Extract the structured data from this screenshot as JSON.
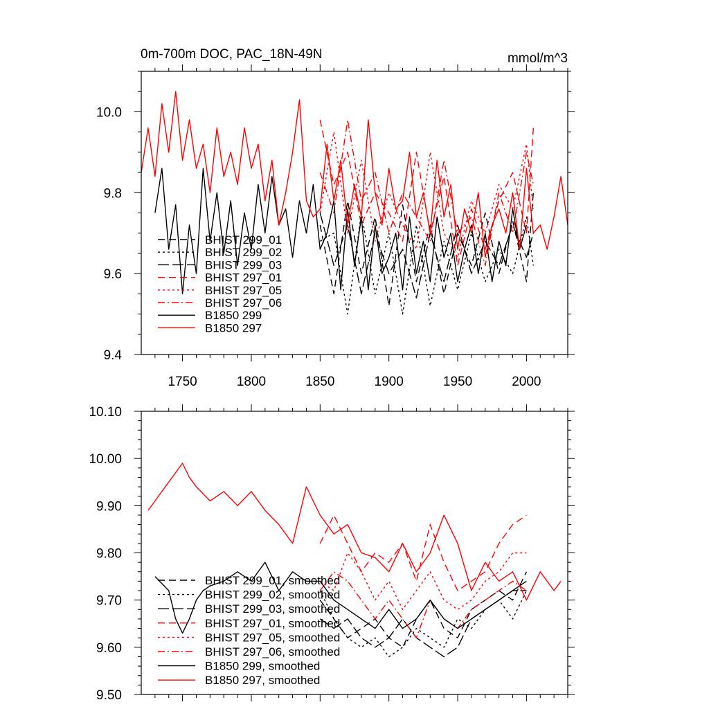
{
  "chart_data": [
    {
      "type": "line",
      "title": "0m-700m DOC, PAC_18N-49N",
      "units": "mmol/m^3",
      "xlim": [
        1720,
        2030
      ],
      "ylim": [
        9.4,
        10.1
      ],
      "xticks": [
        1750,
        1800,
        1850,
        1900,
        1950,
        2000
      ],
      "xtick_labels": [
        "1750",
        "1800",
        "1850",
        "1900",
        "1950",
        "2000"
      ],
      "yticks": [
        9.4,
        9.6,
        9.8,
        10.0
      ],
      "ytick_labels": [
        "9.4",
        "9.6",
        "9.8",
        "10.0"
      ],
      "legend": [
        "BHIST 299_01",
        "BHIST 299_02",
        "BHIST 299_03",
        "BHIST 297_01",
        "BHIST 297_05",
        "BHIST 297_06",
        "B1850 299",
        "B1850 297"
      ],
      "series": [
        {
          "name": "BHIST 299_01",
          "color": "#000000",
          "dash": "long",
          "x": [
            1850,
            1860,
            1870,
            1880,
            1890,
            1900,
            1910,
            1920,
            1930,
            1940,
            1950,
            1960,
            1970,
            1980,
            1990,
            2000,
            2005
          ],
          "y": [
            9.72,
            9.55,
            9.78,
            9.6,
            9.74,
            9.52,
            9.77,
            9.58,
            9.72,
            9.55,
            9.7,
            9.62,
            9.75,
            9.6,
            9.73,
            9.58,
            9.8
          ]
        },
        {
          "name": "BHIST 299_02",
          "color": "#000000",
          "dash": "short",
          "x": [
            1850,
            1860,
            1870,
            1880,
            1890,
            1900,
            1910,
            1920,
            1930,
            1940,
            1950,
            1960,
            1970,
            1980,
            1990,
            2000,
            2005
          ],
          "y": [
            9.68,
            9.7,
            9.5,
            9.75,
            9.55,
            9.7,
            9.5,
            9.72,
            9.52,
            9.68,
            9.56,
            9.7,
            9.58,
            9.66,
            9.6,
            9.74,
            9.62
          ]
        },
        {
          "name": "BHIST 299_03",
          "color": "#000000",
          "dash": "longlong",
          "x": [
            1850,
            1860,
            1870,
            1880,
            1890,
            1900,
            1910,
            1920,
            1930,
            1940,
            1950,
            1960,
            1970,
            1980,
            1990,
            2000,
            2005
          ],
          "y": [
            9.75,
            9.62,
            9.72,
            9.55,
            9.7,
            9.6,
            9.66,
            9.54,
            9.7,
            9.58,
            9.72,
            9.6,
            9.68,
            9.62,
            9.72,
            9.64,
            9.7
          ]
        },
        {
          "name": "BHIST 297_01",
          "color": "#ff0000",
          "dash": "long",
          "x": [
            1850,
            1860,
            1870,
            1880,
            1890,
            1900,
            1910,
            1920,
            1930,
            1940,
            1950,
            1960,
            1970,
            1980,
            1990,
            2000,
            2005
          ],
          "y": [
            9.98,
            9.82,
            9.9,
            9.72,
            9.8,
            9.75,
            9.68,
            9.9,
            9.7,
            9.84,
            9.62,
            9.76,
            9.66,
            9.78,
            9.85,
            9.7,
            9.96
          ]
        },
        {
          "name": "BHIST 297_05",
          "color": "#ff0000",
          "dash": "short",
          "x": [
            1850,
            1860,
            1870,
            1880,
            1890,
            1900,
            1910,
            1920,
            1930,
            1940,
            1950,
            1960,
            1970,
            1980,
            1990,
            2000,
            2005
          ],
          "y": [
            9.75,
            9.95,
            9.7,
            9.88,
            9.68,
            9.8,
            9.72,
            9.66,
            9.9,
            9.7,
            9.64,
            9.78,
            9.7,
            9.82,
            9.76,
            9.92,
            9.76
          ]
        },
        {
          "name": "BHIST 297_06",
          "color": "#ff0000",
          "dash": "dashdot",
          "x": [
            1850,
            1860,
            1870,
            1880,
            1890,
            1900,
            1910,
            1920,
            1930,
            1940,
            1950,
            1960,
            1970,
            1980,
            1990,
            2000,
            2005
          ],
          "y": [
            9.85,
            9.75,
            9.98,
            9.78,
            9.85,
            9.7,
            9.8,
            9.74,
            9.68,
            9.88,
            9.7,
            9.74,
            9.62,
            9.8,
            9.7,
            9.9,
            9.82
          ]
        },
        {
          "name": "B1850 299",
          "color": "#000000",
          "dash": "solid",
          "x": [
            1730,
            1735,
            1740,
            1745,
            1750,
            1755,
            1760,
            1765,
            1770,
            1775,
            1780,
            1785,
            1790,
            1795,
            1800,
            1805,
            1810,
            1815,
            1820,
            1825,
            1830,
            1835,
            1840,
            1845,
            1850,
            1855,
            1860,
            1865,
            1870,
            1875,
            1880,
            1885,
            1890,
            1895,
            1900,
            1905,
            1910,
            1915,
            1920,
            1925,
            1930,
            1935,
            1940,
            1945,
            1950,
            1955,
            1960,
            1965,
            1970,
            1975,
            1980,
            1985,
            1990,
            1995,
            2000
          ],
          "y": [
            9.75,
            9.86,
            9.66,
            9.77,
            9.55,
            9.72,
            9.6,
            9.86,
            9.68,
            9.8,
            9.65,
            9.78,
            9.62,
            9.75,
            9.66,
            9.82,
            9.7,
            9.84,
            9.72,
            9.76,
            9.64,
            9.78,
            9.7,
            9.82,
            9.66,
            9.7,
            9.78,
            9.56,
            9.76,
            9.62,
            9.74,
            9.56,
            9.72,
            9.6,
            9.64,
            9.7,
            9.56,
            9.74,
            9.6,
            9.68,
            9.58,
            9.74,
            9.64,
            9.7,
            9.58,
            9.66,
            9.72,
            9.6,
            9.7,
            9.58,
            9.68,
            9.62,
            9.76,
            9.66,
            9.72
          ]
        },
        {
          "name": "B1850 297",
          "color": "#ff0000",
          "dash": "solid",
          "x": [
            1720,
            1725,
            1730,
            1735,
            1740,
            1745,
            1750,
            1755,
            1760,
            1765,
            1770,
            1775,
            1780,
            1785,
            1790,
            1795,
            1800,
            1805,
            1810,
            1815,
            1820,
            1825,
            1830,
            1835,
            1840,
            1845,
            1850,
            1855,
            1860,
            1865,
            1870,
            1875,
            1880,
            1885,
            1890,
            1895,
            1900,
            1905,
            1910,
            1915,
            1920,
            1925,
            1930,
            1935,
            1940,
            1945,
            1950,
            1955,
            1960,
            1965,
            1970,
            1975,
            1980,
            1985,
            1990,
            1995,
            2000,
            2005,
            2010,
            2015,
            2020,
            2025,
            2030
          ],
          "y": [
            9.85,
            9.96,
            9.84,
            10.02,
            9.9,
            10.05,
            9.88,
            9.98,
            9.86,
            9.92,
            9.8,
            9.96,
            9.84,
            9.9,
            9.82,
            9.96,
            9.86,
            9.92,
            9.78,
            9.88,
            9.72,
            9.8,
            9.9,
            10.03,
            9.78,
            9.74,
            9.76,
            9.92,
            9.78,
            9.88,
            9.72,
            9.82,
            9.74,
            9.98,
            9.8,
            9.72,
            9.86,
            9.76,
            9.78,
            9.9,
            9.74,
            9.8,
            9.7,
            9.88,
            9.74,
            9.82,
            9.66,
            9.76,
            9.7,
            9.8,
            9.64,
            9.72,
            9.76,
            9.7,
            9.8,
            9.66,
            9.86,
            9.7,
            9.72,
            9.66,
            9.74,
            9.84,
            9.72
          ]
        }
      ]
    },
    {
      "type": "line",
      "title": "",
      "xlim": [
        1720,
        2030
      ],
      "ylim": [
        9.5,
        10.1
      ],
      "xticks": [
        1750,
        1800,
        1850,
        1900,
        1950,
        2000
      ],
      "yticks": [
        9.5,
        9.6,
        9.7,
        9.8,
        9.9,
        10.0,
        10.1
      ],
      "ytick_labels": [
        "9.50",
        "9.60",
        "9.70",
        "9.80",
        "9.90",
        "10.00",
        "10.10"
      ],
      "legend": [
        "BHIST 299_01, smoothed",
        "BHIST 299_02, smoothed",
        "BHIST 299_03, smoothed",
        "BHIST 297_01, smoothed",
        "BHIST 297_05, smoothed",
        "BHIST 297_06, smoothed",
        "B1850 299, smoothed",
        "B1850 297, smoothed"
      ],
      "series": [
        {
          "name": "BHIST 299_01, smoothed",
          "color": "#000000",
          "dash": "long",
          "x": [
            1850,
            1860,
            1870,
            1880,
            1890,
            1900,
            1910,
            1920,
            1930,
            1940,
            1950,
            1960,
            1970,
            1980,
            1990,
            2000
          ],
          "y": [
            9.7,
            9.66,
            9.62,
            9.64,
            9.66,
            9.62,
            9.6,
            9.66,
            9.7,
            9.64,
            9.62,
            9.68,
            9.7,
            9.72,
            9.7,
            9.76
          ]
        },
        {
          "name": "BHIST 299_02, smoothed",
          "color": "#000000",
          "dash": "short",
          "x": [
            1850,
            1860,
            1870,
            1880,
            1890,
            1900,
            1910,
            1920,
            1930,
            1940,
            1950,
            1960,
            1970,
            1980,
            1990,
            2000
          ],
          "y": [
            9.72,
            9.66,
            9.62,
            9.6,
            9.62,
            9.58,
            9.6,
            9.64,
            9.62,
            9.6,
            9.66,
            9.64,
            9.68,
            9.7,
            9.66,
            9.72
          ]
        },
        {
          "name": "BHIST 299_03, smoothed",
          "color": "#000000",
          "dash": "longlong",
          "x": [
            1850,
            1860,
            1870,
            1880,
            1890,
            1900,
            1910,
            1920,
            1930,
            1940,
            1950,
            1960,
            1970,
            1980,
            1990,
            2000
          ],
          "y": [
            9.66,
            9.64,
            9.66,
            9.62,
            9.6,
            9.62,
            9.66,
            9.62,
            9.6,
            9.58,
            9.6,
            9.66,
            9.68,
            9.7,
            9.72,
            9.72
          ]
        },
        {
          "name": "BHIST 297_01, smoothed",
          "color": "#ff0000",
          "dash": "long",
          "x": [
            1850,
            1860,
            1870,
            1880,
            1890,
            1900,
            1910,
            1920,
            1930,
            1940,
            1950,
            1960,
            1970,
            1980,
            1990,
            2000
          ],
          "y": [
            9.82,
            9.88,
            9.82,
            9.76,
            9.8,
            9.78,
            9.82,
            9.74,
            9.86,
            9.78,
            9.72,
            9.74,
            9.76,
            9.82,
            9.86,
            9.88
          ]
        },
        {
          "name": "BHIST 297_05, smoothed",
          "color": "#ff0000",
          "dash": "short",
          "x": [
            1850,
            1860,
            1870,
            1880,
            1890,
            1900,
            1910,
            1920,
            1930,
            1940,
            1950,
            1960,
            1970,
            1980,
            1990,
            2000
          ],
          "y": [
            9.74,
            9.72,
            9.8,
            9.76,
            9.7,
            9.74,
            9.68,
            9.72,
            9.76,
            9.7,
            9.68,
            9.7,
            9.74,
            9.76,
            9.8,
            9.8
          ]
        },
        {
          "name": "BHIST 297_06, smoothed",
          "color": "#ff0000",
          "dash": "dashdot",
          "x": [
            1850,
            1860,
            1870,
            1880,
            1890,
            1900,
            1910,
            1920,
            1930,
            1940,
            1950,
            1960,
            1970,
            1980,
            1990,
            2000
          ],
          "y": [
            9.72,
            9.76,
            9.74,
            9.7,
            9.66,
            9.7,
            9.66,
            9.62,
            9.7,
            9.66,
            9.64,
            9.68,
            9.7,
            9.72,
            9.74,
            9.72
          ]
        },
        {
          "name": "B1850 299, smoothed",
          "color": "#000000",
          "dash": "solid",
          "x": [
            1730,
            1740,
            1745,
            1750,
            1755,
            1760,
            1765,
            1770,
            1780,
            1790,
            1800,
            1810,
            1820,
            1830,
            1840,
            1850,
            1860,
            1870,
            1880,
            1890,
            1900,
            1910,
            1920,
            1930,
            1940,
            1950,
            1960,
            1970,
            1980,
            1990,
            2000
          ],
          "y": [
            9.75,
            9.72,
            9.66,
            9.63,
            9.66,
            9.7,
            9.72,
            9.73,
            9.74,
            9.76,
            9.74,
            9.78,
            9.72,
            9.76,
            9.74,
            9.74,
            9.7,
            9.68,
            9.66,
            9.64,
            9.68,
            9.64,
            9.66,
            9.7,
            9.66,
            9.64,
            9.66,
            9.68,
            9.7,
            9.72,
            9.74
          ]
        },
        {
          "name": "B1850 297, smoothed",
          "color": "#ff0000",
          "dash": "solid",
          "x": [
            1725,
            1730,
            1735,
            1740,
            1745,
            1750,
            1755,
            1760,
            1770,
            1780,
            1790,
            1800,
            1810,
            1820,
            1830,
            1840,
            1850,
            1860,
            1870,
            1880,
            1890,
            1900,
            1910,
            1920,
            1930,
            1940,
            1950,
            1960,
            1970,
            1980,
            1990,
            2000,
            2010,
            2020,
            2025
          ],
          "y": [
            9.89,
            9.91,
            9.93,
            9.95,
            9.97,
            9.99,
            9.96,
            9.94,
            9.91,
            9.93,
            9.9,
            9.93,
            9.89,
            9.86,
            9.82,
            9.94,
            9.88,
            9.84,
            9.86,
            9.8,
            9.79,
            9.76,
            9.82,
            9.76,
            9.8,
            9.88,
            9.82,
            9.72,
            9.78,
            9.74,
            9.76,
            9.7,
            9.76,
            9.72,
            9.74
          ]
        }
      ]
    }
  ]
}
